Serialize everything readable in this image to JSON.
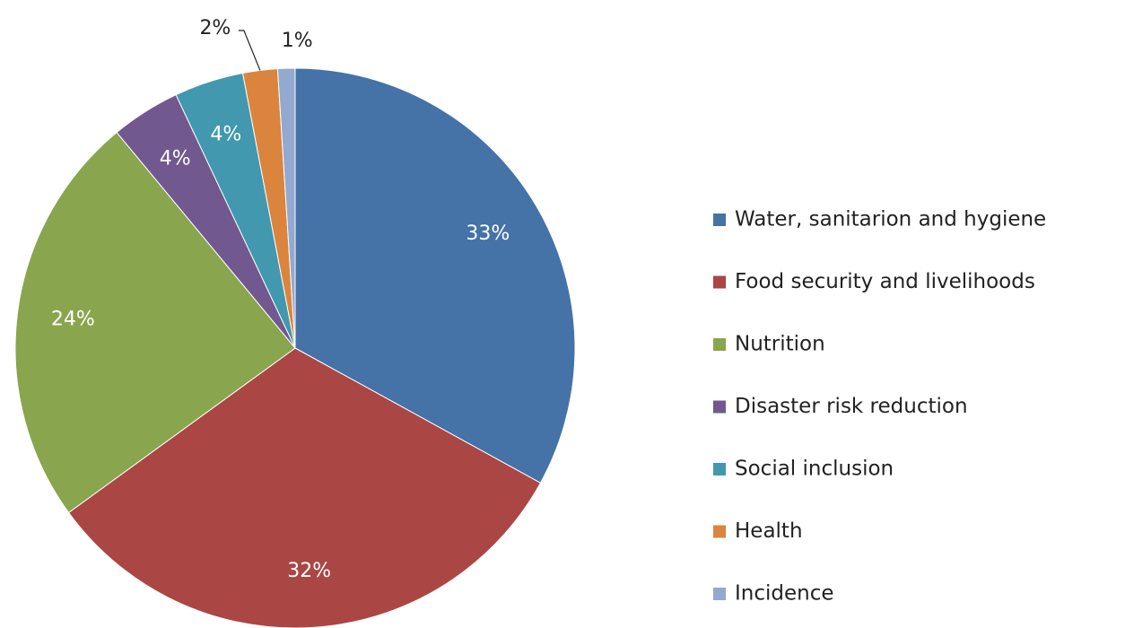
{
  "chart_data": {
    "type": "pie",
    "categories": [
      "Water, sanitarion and hygiene",
      "Food security and livelihoods",
      "Nutrition",
      "Disaster risk reduction",
      "Social inclusion",
      "Health",
      "Incidence"
    ],
    "values": [
      33,
      32,
      24,
      4,
      4,
      2,
      1
    ],
    "value_labels": [
      "33%",
      "32%",
      "24%",
      "4%",
      "4%",
      "2%",
      "1%"
    ],
    "colors": [
      "#4572a7",
      "#aa4643",
      "#89a54e",
      "#71588f",
      "#4198af",
      "#db843d",
      "#93a9cf"
    ],
    "legend": "right"
  }
}
